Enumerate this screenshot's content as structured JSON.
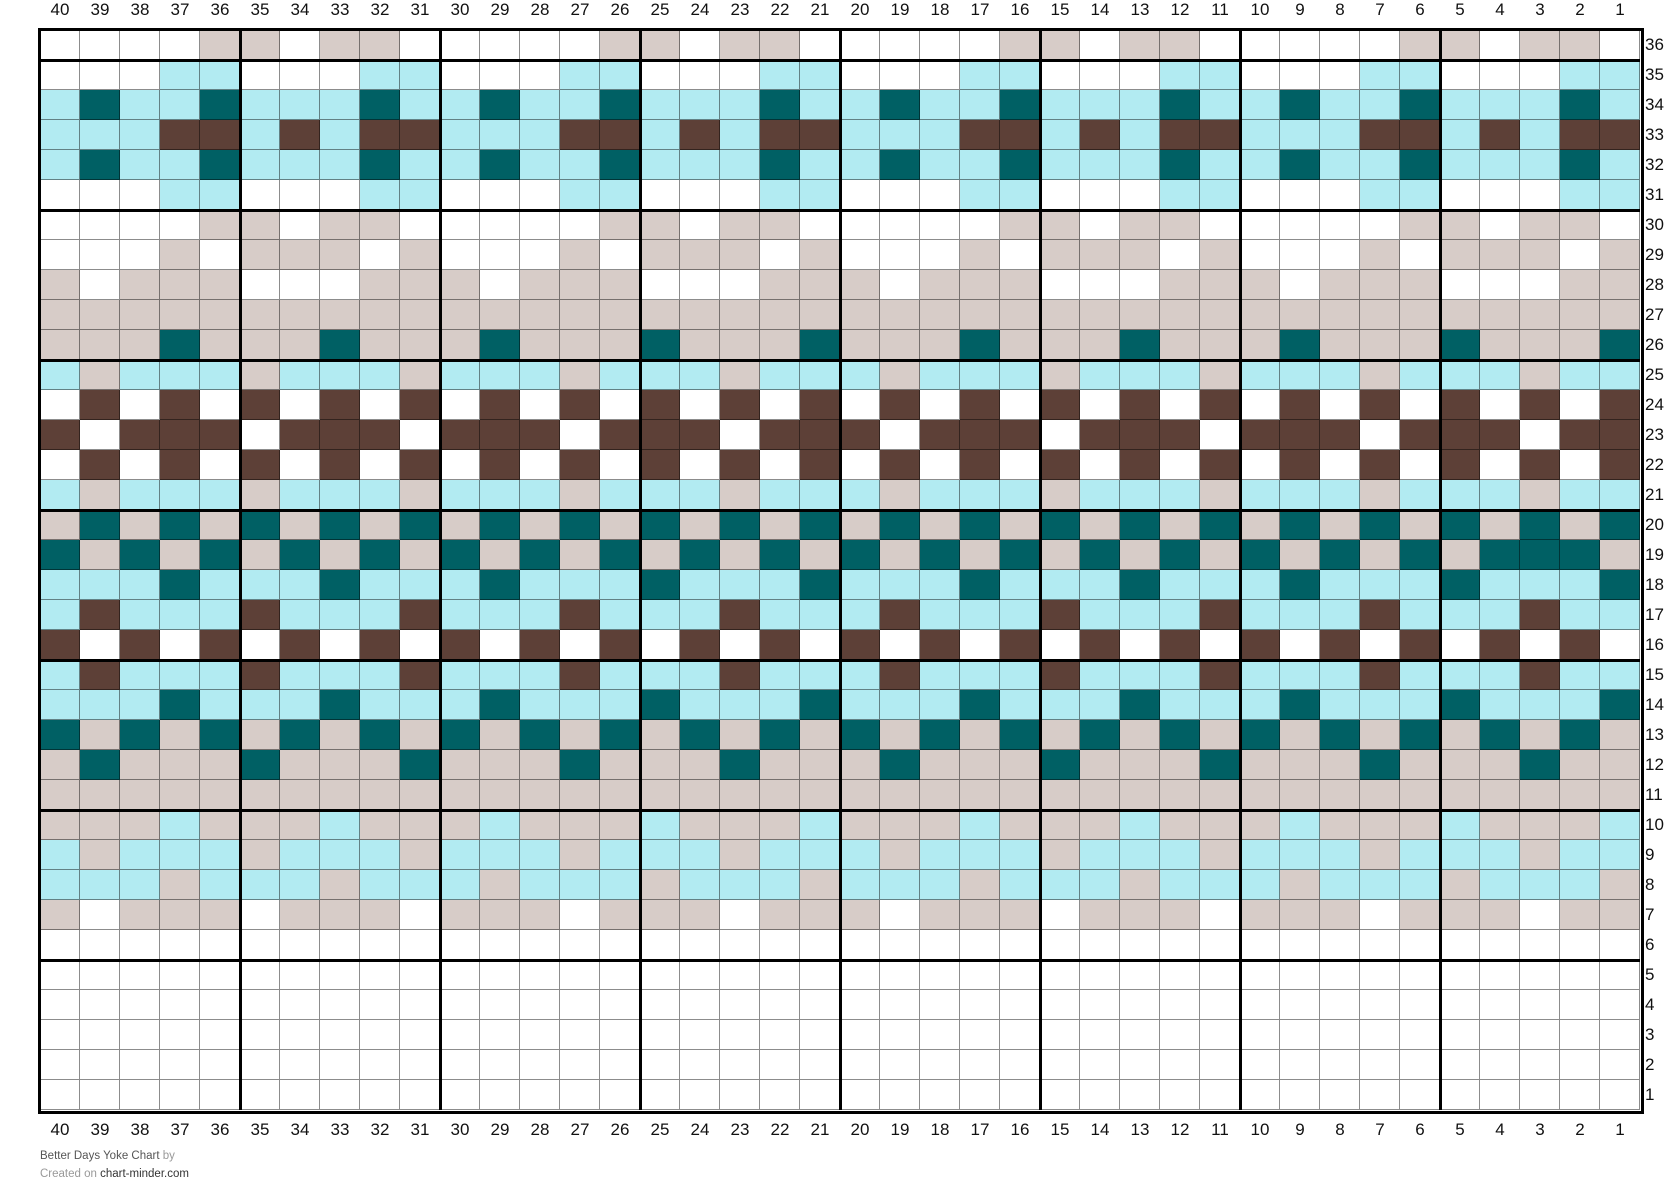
{
  "chart_data": {
    "type": "heatmap",
    "title": "Better Days Yoke Chart",
    "column_labels": [
      40,
      39,
      38,
      37,
      36,
      35,
      34,
      33,
      32,
      31,
      30,
      29,
      28,
      27,
      26,
      25,
      24,
      23,
      22,
      21,
      20,
      19,
      18,
      17,
      16,
      15,
      14,
      13,
      12,
      11,
      10,
      9,
      8,
      7,
      6,
      5,
      4,
      3,
      2,
      1
    ],
    "row_labels": [
      36,
      35,
      34,
      33,
      32,
      31,
      30,
      29,
      28,
      27,
      26,
      25,
      24,
      23,
      22,
      21,
      20,
      19,
      18,
      17,
      16,
      15,
      14,
      13,
      12,
      11,
      10,
      9,
      8,
      7,
      6,
      5,
      4,
      3,
      2,
      1
    ],
    "palette": {
      "W": "#ffffff",
      "T": "#d7ccc8",
      "L": "#b2ebf2",
      "D": "#006064",
      "B": "#5d4037"
    },
    "grid_lines": "thin every stitch, thick every 5 stitches/rows",
    "rows": [
      "WWWWTTWTTWWWWWTTWTTWWWWWTTWTTWWWWWTTWTTW",
      "WWWLLWWWLLWWWLLWWWLLWWWLLWWWLLWWWLLWWWLL",
      "LDLLDLLLDLLDLLDLLLDLLDLLDLLLDLLDLLDLLLDL",
      "LLLBBLBLBBLLLBBLBLBBLLLBBLBLBBLLLBBLBLBB",
      "LDLLDLLLDLLDLLDLLLDLLDLLDLLLDLLDLLDLLLDL",
      "WWWLLWWWLLWWWLLWWWLLWWWLLWWWLLWWWLLWWWLL",
      "WWWWTTWTTWWWWWTTWTTWWWWWTTWTTWWWWWTTWTTW",
      "WWWTWTTTWTWWWTWTTTWTWWWTWTTTWTWWWTWTTTWT",
      "TWTTTWWWTTTWTTTWWWTTTWTTTWWWTTTWTTTWWWTT",
      "TTTTTTTTTTTTTTTTTTTTTTTTTTTTTTTTTTTTTTTT",
      "TTTDTTTDTTTDTTTDTTTDTTTDTTTDTTTDTTTDTTTD",
      "LTLLLTLLLTLLLTLLLTLLLTLLLTLLLTLLLTLLLTLL",
      "WBWBWBWBWBWBWBWBWBWBWBWBWBWBWBWBWBWBWBWB",
      "BWBBBWBBBWBBBWBBBWBBBWBBBWBBBWBBBWBBBWBB",
      "WBWBWBWBWBWBWBWBWBWBWBWBWBWBWBWBWBWBWBWB",
      "LTLLLTLLLTLLLTLLLTLLLTLLLTLLLTLLLTLLLTLL",
      "TDTDTDTDTDTDTDTDTDTDTDTDTDTDTDTDTDTDTDTD",
      "DTDTDTDTDTDTDTDTDTDTDTDTDTDTDTDTDTDTDDDT",
      "LLLDLLLDLLLDLLLDLLLDLLLDLLLDLLLDLLLDLLLD",
      "LBLLLBLLLBLLLBLLLBLLLBLLLBLLLBLLLBLLLBLL",
      "BWBWBWBWBWBWBWBWBWBWBWBWBWBWBWBWBWBWBWBW",
      "LBLLLBLLLBLLLBLLLBLLLBLLLBLLLBLLLBLLLBLL",
      "LLLDLLLDLLLDLLLDLLLDLLLDLLLDLLLDLLLDLLLD",
      "DTDTDTDTDTDTDTDTDTDTDTDTDTDTDTDTDTDTDTDT",
      "TDTTTDTTTDTTTDTTTDTTTDTTTDTTTDTTTDTTTDTT",
      "TTTTTTTTTTTTTTTTTTTTTTTTTTTTTTTTTTTTTTTT",
      "TTTLTTTLTTTLTTTLTTTLTTTLTTTLTTTLTTTLTTTL",
      "LTLLLTLLLTLLLTLLLTLLLTLLLTLLLTLLLTLLLTLL",
      "LLLTLLLTLLLTLLLTLLLTLLLTLLLTLLLTLLLTLLLT",
      "TWTTTWTTTWTTTWTTTWTTTWTTTWTTTWTTTWTTTWTT",
      "WWWWWWWWWWWWWWWWWWWWWWWWWWWWWWWWWWWWWWWW",
      "WWWWWWWWWWWWWWWWWWWWWWWWWWWWWWWWWWWWWWWW",
      "WWWWWWWWWWWWWWWWWWWWWWWWWWWWWWWWWWWWWWWW",
      "WWWWWWWWWWWWWWWWWWWWWWWWWWWWWWWWWWWWWWWW",
      "WWWWWWWWWWWWWWWWWWWWWWWWWWWWWWWWWWWWWWWW",
      "WWWWWWWWWWWWWWWWWWWWWWWWWWWWWWWWWWWWWWWW"
    ]
  },
  "footer": {
    "title": "Better Days Yoke Chart",
    "by": "by",
    "created_on": "Created on",
    "site": "chart-minder.com"
  }
}
